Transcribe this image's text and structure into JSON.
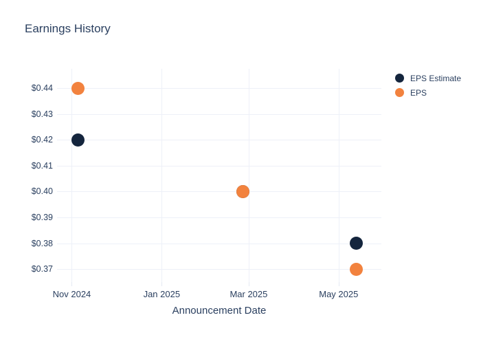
{
  "chart_data": {
    "type": "scatter",
    "title": "Earnings History",
    "xlabel": "Announcement Date",
    "ylabel": "",
    "grid": true,
    "legend_position": "right",
    "x_range": [
      "2024-10-22",
      "2025-05-30"
    ],
    "y_range": [
      0.365,
      0.4475
    ],
    "x_ticks": [
      {
        "label": "Nov 2024",
        "date": "2024-11-01"
      },
      {
        "label": "Jan 2025",
        "date": "2025-01-01"
      },
      {
        "label": "Mar 2025",
        "date": "2025-03-01"
      },
      {
        "label": "May 2025",
        "date": "2025-05-01"
      }
    ],
    "y_ticks": [
      {
        "label": "$0.44",
        "value": 0.44
      },
      {
        "label": "$0.43",
        "value": 0.43
      },
      {
        "label": "$0.42",
        "value": 0.42
      },
      {
        "label": "$0.41",
        "value": 0.41
      },
      {
        "label": "$0.40",
        "value": 0.4
      },
      {
        "label": "$0.39",
        "value": 0.39
      },
      {
        "label": "$0.38",
        "value": 0.38
      },
      {
        "label": "$0.37",
        "value": 0.37
      }
    ],
    "series": [
      {
        "name": "EPS Estimate",
        "color": "#14253d",
        "points": [
          {
            "x": "2024-11-05",
            "y": 0.42
          },
          {
            "x": "2025-02-25",
            "y": 0.4
          },
          {
            "x": "2025-05-13",
            "y": 0.38
          }
        ]
      },
      {
        "name": "EPS",
        "color": "#f2823e",
        "points": [
          {
            "x": "2024-11-05",
            "y": 0.44
          },
          {
            "x": "2025-02-25",
            "y": 0.4
          },
          {
            "x": "2025-05-13",
            "y": 0.37
          }
        ]
      }
    ],
    "note": "EPS Estimate point on 2025-02-25 (0.40) is covered by the EPS point at the same value"
  },
  "colors": {
    "background": "#ffffff",
    "text": "#2a3f5f",
    "gridline": "#edf0f8",
    "eps_estimate": "#14253d",
    "eps": "#f2823e"
  }
}
